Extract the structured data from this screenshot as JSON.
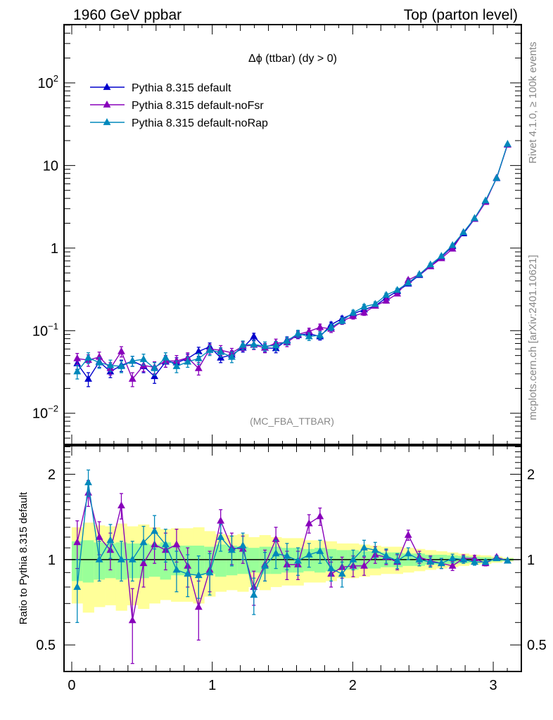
{
  "header": {
    "left": "1960 GeV ppbar",
    "right": "Top (parton level)"
  },
  "side_labels": {
    "rivet": "Rivet 4.1.0, ≥ 100k events",
    "mcplots": "mcplots.cern.ch [arXiv:2401.10621]"
  },
  "watermark": "(MC_FBA_TTBAR)",
  "chart_data": [
    {
      "type": "line",
      "title": "Δϕ (ttbar) (dy > 0)",
      "xlabel": "",
      "ylabel": "",
      "yscale": "log",
      "xlim": [
        -0.055,
        3.2
      ],
      "ylim": [
        0.0042,
        508
      ],
      "xticks": [
        0,
        1,
        2,
        3
      ],
      "xtick_labels": [
        "0",
        "1",
        "2",
        "3"
      ],
      "yticks": [
        0.01,
        0.1,
        1,
        10,
        100
      ],
      "ytick_labels": [
        "10^-2",
        "10^-1",
        "1",
        "10",
        "10^2"
      ],
      "legend_position": "top-left",
      "x": [
        0.039,
        0.118,
        0.196,
        0.275,
        0.353,
        0.432,
        0.511,
        0.589,
        0.668,
        0.746,
        0.825,
        0.903,
        0.982,
        1.06,
        1.139,
        1.218,
        1.296,
        1.375,
        1.453,
        1.532,
        1.61,
        1.689,
        1.767,
        1.846,
        1.924,
        2.003,
        2.081,
        2.16,
        2.238,
        2.317,
        2.395,
        2.474,
        2.553,
        2.631,
        2.71,
        2.788,
        2.867,
        2.945,
        3.024,
        3.102
      ],
      "series": [
        {
          "name": "Pythia 8.315 default",
          "color": "#0000cc",
          "values": [
            0.04,
            0.026,
            0.042,
            0.032,
            0.038,
            0.043,
            0.037,
            0.028,
            0.042,
            0.041,
            0.046,
            0.056,
            0.064,
            0.047,
            0.051,
            0.062,
            0.085,
            0.062,
            0.061,
            0.077,
            0.088,
            0.092,
            0.085,
            0.118,
            0.14,
            0.16,
            0.18,
            0.2,
            0.25,
            0.3,
            0.37,
            0.47,
            0.6,
            0.78,
            1.05,
            1.5,
            2.25,
            3.7,
            7.0,
            18.0
          ],
          "errors": [
            0.006,
            0.005,
            0.006,
            0.005,
            0.006,
            0.006,
            0.006,
            0.005,
            0.006,
            0.006,
            0.006,
            0.007,
            0.007,
            0.006,
            0.006,
            0.007,
            0.008,
            0.007,
            0.007,
            0.007,
            0.008,
            0.008,
            0.008,
            0.009,
            0.01,
            0.01,
            0.011,
            0.012,
            0.013,
            0.015,
            0.017,
            0.02,
            0.025,
            0.03,
            0.04,
            0.05,
            0.06,
            0.08,
            0.12,
            0.25
          ]
        },
        {
          "name": "Pythia 8.315 default-noFsr",
          "color": "#8800bb",
          "values": [
            0.046,
            0.044,
            0.048,
            0.035,
            0.056,
            0.026,
            0.038,
            0.036,
            0.043,
            0.043,
            0.047,
            0.035,
            0.06,
            0.058,
            0.054,
            0.065,
            0.067,
            0.062,
            0.071,
            0.072,
            0.09,
            0.098,
            0.11,
            0.105,
            0.13,
            0.15,
            0.165,
            0.2,
            0.23,
            0.28,
            0.41,
            0.48,
            0.6,
            0.75,
            0.98,
            1.55,
            2.25,
            3.6,
            7.1,
            17.8
          ],
          "errors": [
            0.007,
            0.007,
            0.007,
            0.006,
            0.008,
            0.005,
            0.006,
            0.006,
            0.007,
            0.007,
            0.007,
            0.006,
            0.008,
            0.008,
            0.007,
            0.008,
            0.008,
            0.008,
            0.008,
            0.008,
            0.009,
            0.009,
            0.01,
            0.01,
            0.011,
            0.012,
            0.012,
            0.013,
            0.014,
            0.016,
            0.02,
            0.021,
            0.025,
            0.03,
            0.04,
            0.05,
            0.06,
            0.08,
            0.12,
            0.25
          ]
        },
        {
          "name": "Pythia 8.315 default-noRap",
          "color": "#0088bb",
          "values": [
            0.032,
            0.047,
            0.041,
            0.038,
            0.037,
            0.043,
            0.045,
            0.035,
            0.047,
            0.037,
            0.042,
            0.046,
            0.058,
            0.055,
            0.048,
            0.067,
            0.068,
            0.065,
            0.066,
            0.075,
            0.092,
            0.085,
            0.088,
            0.11,
            0.132,
            0.165,
            0.195,
            0.21,
            0.27,
            0.31,
            0.38,
            0.48,
            0.63,
            0.8,
            1.08,
            1.55,
            2.3,
            3.75,
            7.05,
            18.2
          ],
          "errors": [
            0.006,
            0.007,
            0.006,
            0.006,
            0.006,
            0.006,
            0.007,
            0.006,
            0.007,
            0.006,
            0.006,
            0.007,
            0.008,
            0.007,
            0.007,
            0.008,
            0.008,
            0.008,
            0.008,
            0.008,
            0.009,
            0.009,
            0.009,
            0.01,
            0.011,
            0.012,
            0.013,
            0.013,
            0.015,
            0.016,
            0.018,
            0.021,
            0.026,
            0.031,
            0.04,
            0.05,
            0.06,
            0.08,
            0.12,
            0.25
          ]
        }
      ]
    },
    {
      "type": "line",
      "title": "",
      "xlabel": "",
      "ylabel": "Ratio to Pythia 8.315 default",
      "yscale": "log",
      "xlim": [
        -0.055,
        3.2
      ],
      "ylim": [
        0.403,
        2.52
      ],
      "xticks": [
        0,
        1,
        2,
        3
      ],
      "xtick_labels": [
        "0",
        "1",
        "2",
        "3"
      ],
      "yticks": [
        0.5,
        1,
        2
      ],
      "ytick_labels": [
        "0.5",
        "1",
        "2"
      ],
      "reference_line": 1,
      "band_colors": {
        "inner": "#99ff99",
        "outer": "#ffff99"
      },
      "band_1sigma": [
        0.16,
        0.17,
        0.15,
        0.14,
        0.15,
        0.14,
        0.14,
        0.13,
        0.15,
        0.12,
        0.12,
        0.12,
        0.11,
        0.13,
        0.12,
        0.11,
        0.1,
        0.11,
        0.11,
        0.1,
        0.1,
        0.09,
        0.1,
        0.09,
        0.08,
        0.08,
        0.07,
        0.07,
        0.06,
        0.06,
        0.05,
        0.05,
        0.04,
        0.04,
        0.035,
        0.03,
        0.025,
        0.02,
        0.015,
        0.01
      ],
      "band_2sigma": [
        0.3,
        0.35,
        0.32,
        0.31,
        0.34,
        0.31,
        0.33,
        0.3,
        0.28,
        0.29,
        0.29,
        0.3,
        0.26,
        0.23,
        0.22,
        0.23,
        0.2,
        0.22,
        0.2,
        0.19,
        0.19,
        0.17,
        0.17,
        0.16,
        0.14,
        0.14,
        0.13,
        0.12,
        0.11,
        0.11,
        0.1,
        0.09,
        0.08,
        0.07,
        0.06,
        0.05,
        0.04,
        0.035,
        0.025,
        0.015
      ],
      "x": [
        0.039,
        0.118,
        0.196,
        0.275,
        0.353,
        0.432,
        0.511,
        0.589,
        0.668,
        0.746,
        0.825,
        0.903,
        0.982,
        1.06,
        1.139,
        1.218,
        1.296,
        1.375,
        1.453,
        1.532,
        1.61,
        1.689,
        1.767,
        1.846,
        1.924,
        2.003,
        2.081,
        2.16,
        2.238,
        2.317,
        2.395,
        2.474,
        2.553,
        2.631,
        2.71,
        2.788,
        2.867,
        2.945,
        3.024,
        3.102
      ],
      "series": [
        {
          "name": "Pythia 8.315 default-noFsr",
          "color": "#8800bb",
          "values": [
            1.15,
            1.72,
            1.2,
            1.08,
            1.55,
            0.61,
            0.97,
            1.13,
            1.08,
            1.13,
            0.95,
            0.68,
            0.92,
            1.37,
            1.1,
            1.09,
            0.8,
            0.96,
            1.18,
            0.96,
            0.96,
            1.34,
            1.42,
            0.89,
            0.94,
            0.95,
            0.95,
            1.04,
            1.02,
            0.98,
            1.22,
            1.02,
            0.99,
            0.97,
            0.95,
            1.01,
            1.01,
            0.97,
            1.02,
            0.99
          ],
          "errors": [
            0.22,
            0.18,
            0.16,
            0.16,
            0.16,
            0.18,
            0.17,
            0.16,
            0.16,
            0.15,
            0.15,
            0.16,
            0.15,
            0.13,
            0.14,
            0.12,
            0.11,
            0.12,
            0.12,
            0.11,
            0.11,
            0.1,
            0.1,
            0.09,
            0.08,
            0.08,
            0.07,
            0.07,
            0.06,
            0.06,
            0.05,
            0.05,
            0.04,
            0.04,
            0.035,
            0.03,
            0.025,
            0.02,
            0.015,
            0.01
          ]
        },
        {
          "name": "Pythia 8.315 default-noRap",
          "color": "#0088bb",
          "values": [
            0.8,
            1.87,
            1.0,
            1.17,
            1.0,
            1.0,
            1.15,
            1.26,
            1.13,
            0.92,
            0.89,
            0.88,
            0.9,
            1.2,
            1.08,
            1.12,
            0.75,
            0.95,
            1.05,
            1.03,
            0.99,
            1.04,
            1.07,
            0.93,
            0.89,
            1.0,
            1.1,
            1.08,
            1.03,
            0.99,
            1.05,
            1.0,
            0.98,
            0.97,
            1.01,
            1.0,
            0.98,
            0.98,
            1.01,
            0.99
          ],
          "errors": [
            0.2,
            0.2,
            0.16,
            0.16,
            0.16,
            0.16,
            0.16,
            0.17,
            0.15,
            0.15,
            0.15,
            0.15,
            0.15,
            0.13,
            0.13,
            0.12,
            0.11,
            0.11,
            0.12,
            0.11,
            0.11,
            0.1,
            0.1,
            0.09,
            0.09,
            0.08,
            0.07,
            0.07,
            0.06,
            0.06,
            0.05,
            0.05,
            0.04,
            0.04,
            0.035,
            0.03,
            0.025,
            0.02,
            0.015,
            0.01
          ]
        }
      ]
    }
  ]
}
